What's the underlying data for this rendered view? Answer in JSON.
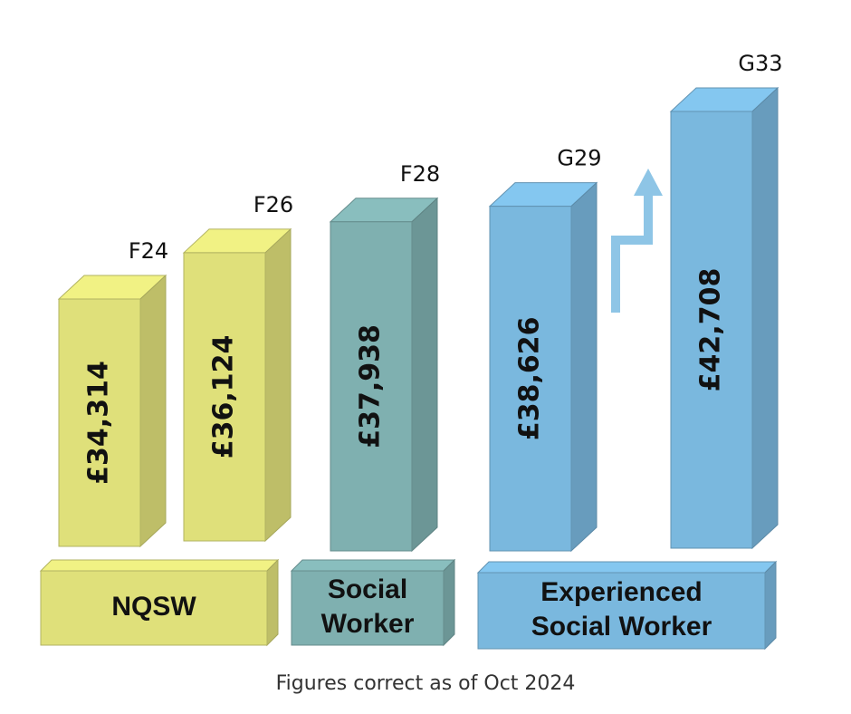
{
  "chart_data": {
    "type": "bar3d",
    "categories": [
      "F24",
      "F26",
      "F28",
      "G29",
      "G33"
    ],
    "values": [
      34314,
      36124,
      37938,
      38626,
      42708
    ],
    "value_labels": [
      "£34,314",
      "£36,124",
      "£37,938",
      "£38,626",
      "£42,708"
    ],
    "colors": [
      "#dfe07a",
      "#dfe07a",
      "#7fb0b0",
      "#7ab8de",
      "#7ab8de"
    ],
    "groups": [
      {
        "lines": [
          "NQSW"
        ],
        "color": "#dfe07a"
      },
      {
        "lines": [
          "Social",
          "Worker"
        ],
        "color": "#7fb0b0"
      },
      {
        "lines": [
          "Experienced",
          "Social Worker"
        ],
        "color": "#7ab8de"
      }
    ],
    "footnote": "Figures correct as of Oct 2024"
  }
}
